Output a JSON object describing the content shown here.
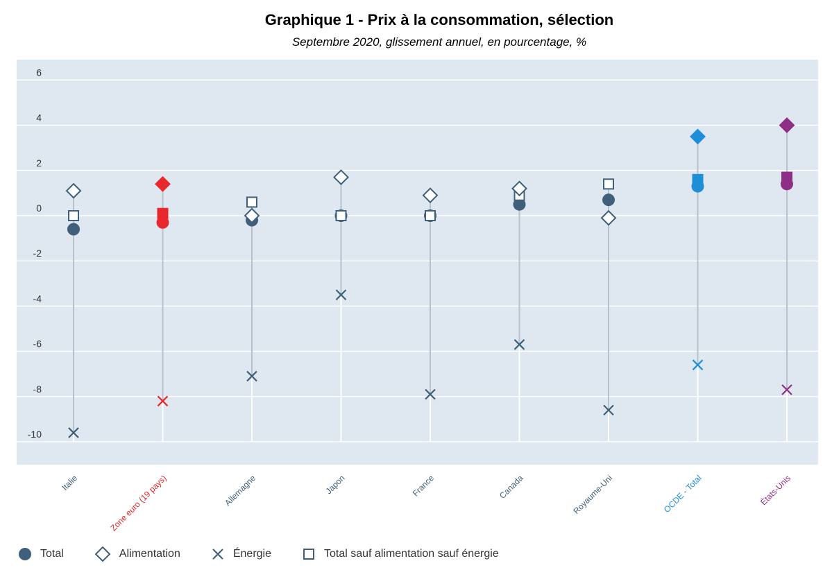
{
  "title": "Graphique 1 - Prix à la consommation, sélection",
  "subtitle": "Septembre 2020, glissement annuel, en pourcentage, %",
  "colors": {
    "plot_bg": "#dfe8f0",
    "grid": "#ffffff",
    "default": "#3f5f7a",
    "euro": "#e8282c",
    "ocde": "#1e8ed8",
    "usa": "#8e2e84",
    "stem": "#b7c2cc"
  },
  "legend": {
    "total": "Total",
    "food": "Alimentation",
    "energy": "Énergie",
    "core": "Total sauf alimentation sauf énergie"
  },
  "chart_data": {
    "type": "scatter",
    "title": "Graphique 1 - Prix à la consommation, sélection",
    "subtitle": "Septembre 2020, glissement annuel, en pourcentage, %",
    "ylim": [
      -11,
      7
    ],
    "yticks": [
      6,
      4,
      2,
      0,
      -2,
      -4,
      -6,
      -8,
      -10
    ],
    "grid": true,
    "legend_position": "bottom-left",
    "categories": [
      "Italie",
      "Zone euro (19 pays)",
      "Allemagne",
      "Japon",
      "France",
      "Canada",
      "Royaume-Uni",
      "OCDE - Total",
      "États-Unis"
    ],
    "category_colors": [
      "#3f5f7a",
      "#e8282c",
      "#3f5f7a",
      "#3f5f7a",
      "#3f5f7a",
      "#3f5f7a",
      "#3f5f7a",
      "#1e8ed8",
      "#8e2e84"
    ],
    "series": [
      {
        "name": "Total",
        "marker": "circle",
        "values": [
          -0.6,
          -0.3,
          -0.2,
          0.0,
          0.0,
          0.5,
          0.7,
          1.3,
          1.4
        ]
      },
      {
        "name": "Alimentation",
        "marker": "diamond",
        "values": [
          1.1,
          1.4,
          0.0,
          1.7,
          0.9,
          1.2,
          -0.1,
          3.5,
          4.0
        ]
      },
      {
        "name": "Énergie",
        "marker": "x",
        "values": [
          -9.6,
          -8.2,
          -7.1,
          -3.5,
          -7.9,
          -5.7,
          -8.6,
          -6.6,
          -7.7
        ]
      },
      {
        "name": "Total sauf alimentation sauf énergie",
        "marker": "square",
        "values": [
          0.0,
          0.1,
          0.6,
          0.0,
          0.0,
          0.9,
          1.4,
          1.6,
          1.7
        ]
      }
    ]
  }
}
